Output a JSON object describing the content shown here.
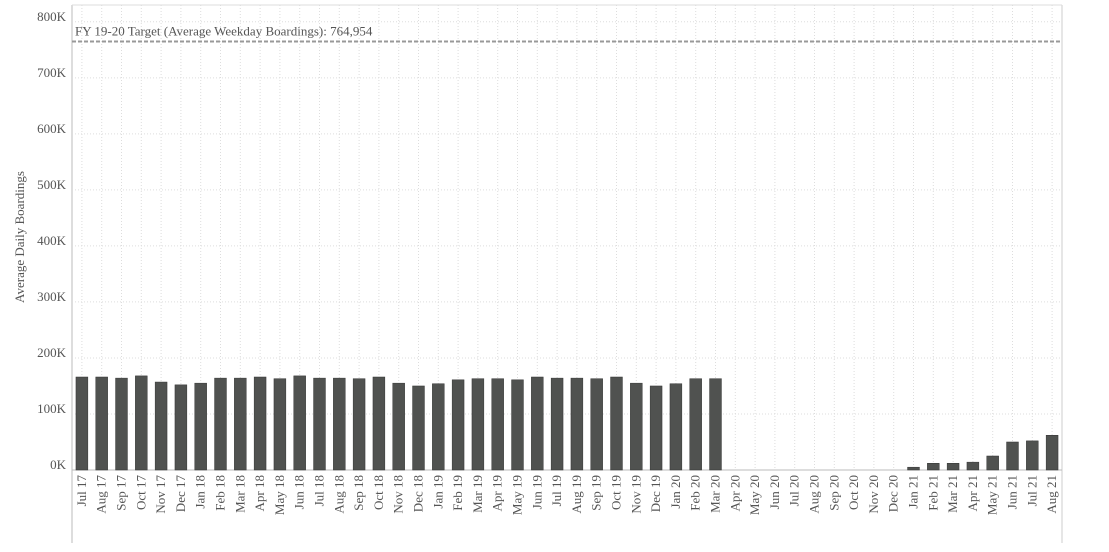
{
  "chart_data": {
    "type": "bar",
    "y_label": "Average Daily Boardings",
    "categories": [
      "Jul 17",
      "Aug 17",
      "Sep 17",
      "Oct 17",
      "Nov 17",
      "Dec 17",
      "Jan 18",
      "Feb 18",
      "Mar 18",
      "Apr 18",
      "May 18",
      "Jun 18",
      "Jul 18",
      "Aug 18",
      "Sep 18",
      "Oct 18",
      "Nov 18",
      "Dec 18",
      "Jan 19",
      "Feb 19",
      "Mar 19",
      "Apr 19",
      "May 19",
      "Jun 19",
      "Jul 19",
      "Aug 19",
      "Sep 19",
      "Oct 19",
      "Nov 19",
      "Dec 19",
      "Jan 20",
      "Feb 20",
      "Mar 20",
      "Apr 20",
      "May 20",
      "Jun 20",
      "Jul 20",
      "Aug 20",
      "Sep 20",
      "Oct 20",
      "Nov 20",
      "Dec 20",
      "Jan 21",
      "Feb 21",
      "Mar 21",
      "Apr 21",
      "May 21",
      "Jun 21",
      "Jul 21",
      "Aug 21"
    ],
    "values": [
      166000,
      166000,
      164000,
      168000,
      157000,
      152000,
      155000,
      164000,
      164000,
      166000,
      163000,
      168000,
      164000,
      164000,
      163000,
      166000,
      155000,
      150000,
      154000,
      161000,
      163000,
      163000,
      161000,
      166000,
      164000,
      164000,
      163000,
      166000,
      155000,
      150000,
      154000,
      163000,
      163000,
      null,
      null,
      null,
      null,
      null,
      null,
      null,
      null,
      null,
      5000,
      12000,
      12000,
      14000,
      25000,
      50000,
      52000,
      62000
    ],
    "color": "#505250",
    "ylim": [
      0,
      830000
    ],
    "yticks": [
      {
        "value": 0,
        "label": "0K"
      },
      {
        "value": 100000,
        "label": "100K"
      },
      {
        "value": 200000,
        "label": "200K"
      },
      {
        "value": 300000,
        "label": "300K"
      },
      {
        "value": 400000,
        "label": "400K"
      },
      {
        "value": 500000,
        "label": "500K"
      },
      {
        "value": 600000,
        "label": "600K"
      },
      {
        "value": 700000,
        "label": "700K"
      },
      {
        "value": 800000,
        "label": "800K"
      }
    ],
    "grid": true,
    "target": 764954,
    "target_label": "FY 19-20 Target (Average Weekday Boardings): 764,954"
  }
}
